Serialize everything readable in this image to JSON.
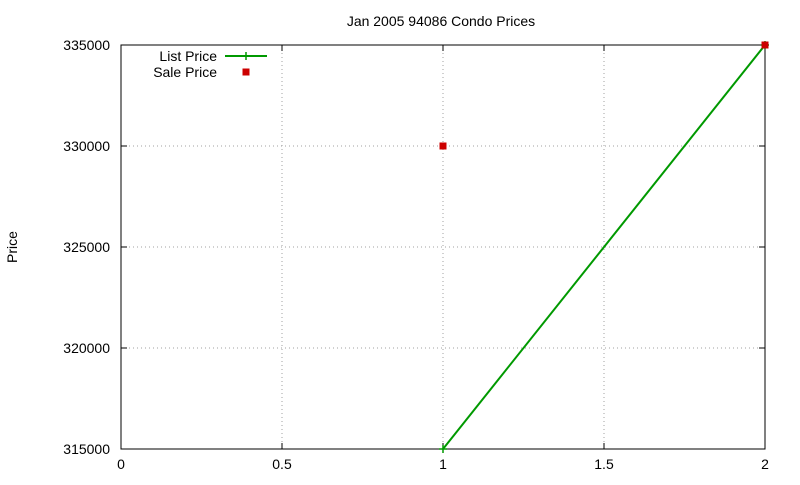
{
  "chart_data": {
    "type": "line",
    "title": "Jan 2005 94086 Condo Prices",
    "xlabel": "",
    "ylabel": "Price",
    "xlim": [
      0,
      2
    ],
    "ylim": [
      315000,
      335000
    ],
    "x_ticks": [
      0,
      0.5,
      1,
      1.5,
      2
    ],
    "x_tick_labels": [
      "0",
      "0.5",
      "1",
      "1.5",
      "2"
    ],
    "y_ticks": [
      315000,
      320000,
      325000,
      330000,
      335000
    ],
    "y_tick_labels": [
      "315000",
      "320000",
      "325000",
      "330000",
      "335000"
    ],
    "grid": true,
    "legend_position": "top-left",
    "series": [
      {
        "name": "List Price",
        "style": "linespoints",
        "marker": "plus",
        "color": "#009900",
        "points": [
          {
            "x": 1,
            "y": 315000
          },
          {
            "x": 2,
            "y": 335000
          }
        ]
      },
      {
        "name": "Sale Price",
        "style": "points",
        "marker": "square",
        "color": "#cc0000",
        "points": [
          {
            "x": 1,
            "y": 330000
          },
          {
            "x": 2,
            "y": 335000
          }
        ]
      }
    ]
  }
}
